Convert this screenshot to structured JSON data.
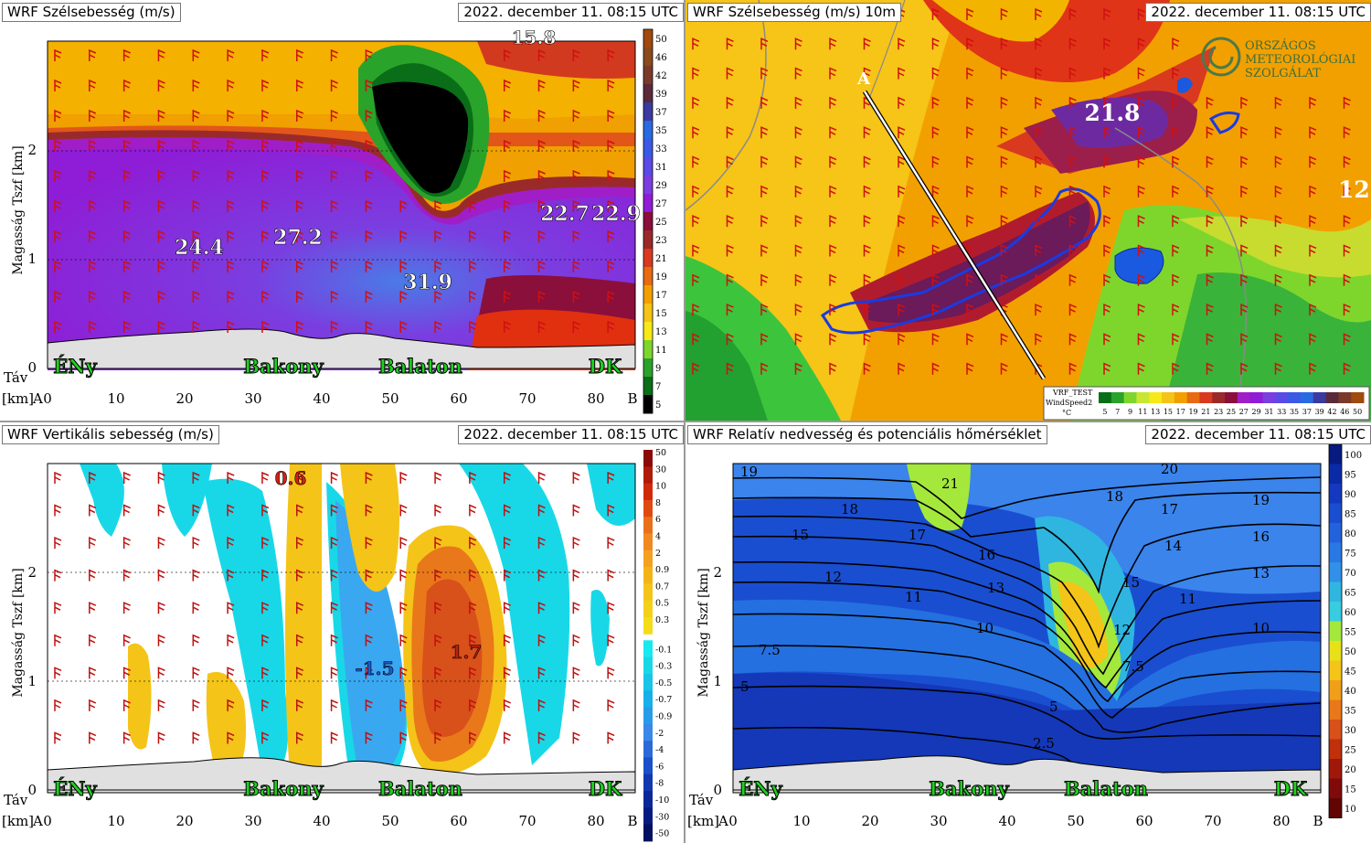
{
  "panels": {
    "wind": {
      "title": "WRF Szélsebesség (m/s)",
      "datetime": "2022. december 11. 08:15 UTC",
      "ylabel": "Magasság Tszf [km]",
      "labels": [
        "24.4",
        "27.2",
        "31.9",
        "22.7",
        "22.9",
        "15.8"
      ],
      "colorbar_ticks": [
        "50",
        "46",
        "42",
        "39",
        "37",
        "35",
        "33",
        "31",
        "29",
        "27",
        "25",
        "23",
        "21",
        "19",
        "17",
        "15",
        "13",
        "11",
        "9",
        "7",
        "5"
      ]
    },
    "map": {
      "title": "WRF Szélsebesség (m/s) 10m",
      "datetime": "2022. december 11. 08:15 UTC",
      "section_start": "A",
      "labels": [
        "21.8",
        "12."
      ],
      "logo_lines": [
        "ORSZÁGOS",
        "METEOROLÓGIAI",
        "SZOLGÁLAT"
      ],
      "legend_title": "VRF_TEST",
      "legend_subtitle": "WindSpeed2",
      "legend_unit": "°C",
      "legend_ticks": [
        "5",
        "7",
        "9",
        "11",
        "13",
        "15",
        "17",
        "19",
        "21",
        "23",
        "25",
        "27",
        "29",
        "31",
        "33",
        "35",
        "37",
        "39",
        "42",
        "46",
        "50"
      ]
    },
    "vertical": {
      "title": "WRF Vertikális sebesség (m/s)",
      "datetime": "2022. december 11. 08:15 UTC",
      "ylabel": "Magasság Tszf [km]",
      "labels": [
        "0.6",
        "-1.5",
        "1.7"
      ],
      "colorbar_ticks_pos": [
        "50",
        "30",
        "10",
        "8",
        "6",
        "4",
        "2",
        "0.9",
        "0.7",
        "0.5",
        "0.3"
      ],
      "colorbar_ticks_neg": [
        "-0.1",
        "-0.3",
        "-0.5",
        "-0.7",
        "-0.9",
        "-2",
        "-4",
        "-6",
        "-8",
        "-10",
        "-30",
        "-50"
      ]
    },
    "humidity": {
      "title": "WRF Relatív nedvesség és potenciális hőmérséklet",
      "datetime": "2022. december 11. 08:15 UTC",
      "ylabel": "Magasság Tszf [km]",
      "contour_labels": [
        "19",
        "21",
        "18",
        "20",
        "19",
        "18",
        "17",
        "15",
        "17",
        "16",
        "16",
        "14",
        "12",
        "13",
        "13",
        "11",
        "15",
        "11",
        "10",
        "10",
        "12",
        "7.5",
        "7.5",
        "5",
        "5",
        "2.5"
      ],
      "colorbar_ticks": [
        "100",
        "95",
        "90",
        "85",
        "80",
        "75",
        "70",
        "65",
        "60",
        "55",
        "50",
        "45",
        "40",
        "35",
        "30",
        "25",
        "20",
        "15",
        "10"
      ]
    }
  },
  "cross_section": {
    "xlabel_prefix": "[km]",
    "start": "A",
    "end": "B",
    "dist_label": "Táv",
    "x_ticks": [
      "0",
      "10",
      "20",
      "30",
      "40",
      "50",
      "60",
      "70",
      "80"
    ],
    "y_ticks": [
      "0",
      "1",
      "2"
    ],
    "places": [
      "ÉNy",
      "Bakony",
      "Balaton",
      "DK"
    ]
  },
  "chart_data": [
    {
      "type": "heatmap",
      "title": "WRF Szélsebesség (m/s)",
      "xlabel": "Táv [km]",
      "ylabel": "Magasság Tszf [km]",
      "xlim": [
        0,
        86
      ],
      "ylim": [
        0,
        3
      ],
      "annotations": [
        {
          "text": "24.4",
          "x": 22,
          "y": 1.1
        },
        {
          "text": "27.2",
          "x": 37,
          "y": 1.2
        },
        {
          "text": "31.9",
          "x": 56,
          "y": 0.8
        },
        {
          "text": "22.7",
          "x": 76,
          "y": 1.4
        },
        {
          "text": "22.9",
          "x": 83,
          "y": 1.4
        },
        {
          "text": "15.8",
          "x": 71,
          "y": 3.0
        }
      ],
      "colorbar": {
        "min": 5,
        "max": 50,
        "unit": "m/s"
      }
    },
    {
      "type": "heatmap",
      "title": "WRF Szélsebesség (m/s) 10m",
      "annotations": [
        {
          "text": "21.8",
          "x": 0.62,
          "y": 0.27
        },
        {
          "text": "12.",
          "x": 0.98,
          "y": 0.45
        }
      ],
      "colorbar": {
        "min": 5,
        "max": 50
      }
    },
    {
      "type": "heatmap",
      "title": "WRF Vertikális sebesség (m/s)",
      "xlabel": "Táv [km]",
      "ylabel": "Magasság Tszf [km]",
      "xlim": [
        0,
        86
      ],
      "ylim": [
        0,
        3
      ],
      "annotations": [
        {
          "text": "0.6",
          "x": 36,
          "y": 2.9
        },
        {
          "text": "-1.5",
          "x": 48,
          "y": 1.1
        },
        {
          "text": "1.7",
          "x": 61,
          "y": 1.25
        }
      ],
      "colorbar": {
        "min": -50,
        "max": 50,
        "unit": "m/s"
      }
    },
    {
      "type": "heatmap",
      "title": "WRF Relatív nedvesség és potenciális hőmérséklet",
      "xlabel": "Táv [km]",
      "ylabel": "Magasság Tszf [km]",
      "xlim": [
        0,
        86
      ],
      "ylim": [
        0,
        3
      ],
      "contours": [
        "21",
        "20",
        "19",
        "18",
        "17",
        "16",
        "15",
        "14",
        "13",
        "12",
        "11",
        "10",
        "7.5",
        "5",
        "2.5"
      ],
      "colorbar": {
        "min": 10,
        "max": 100
      }
    }
  ]
}
